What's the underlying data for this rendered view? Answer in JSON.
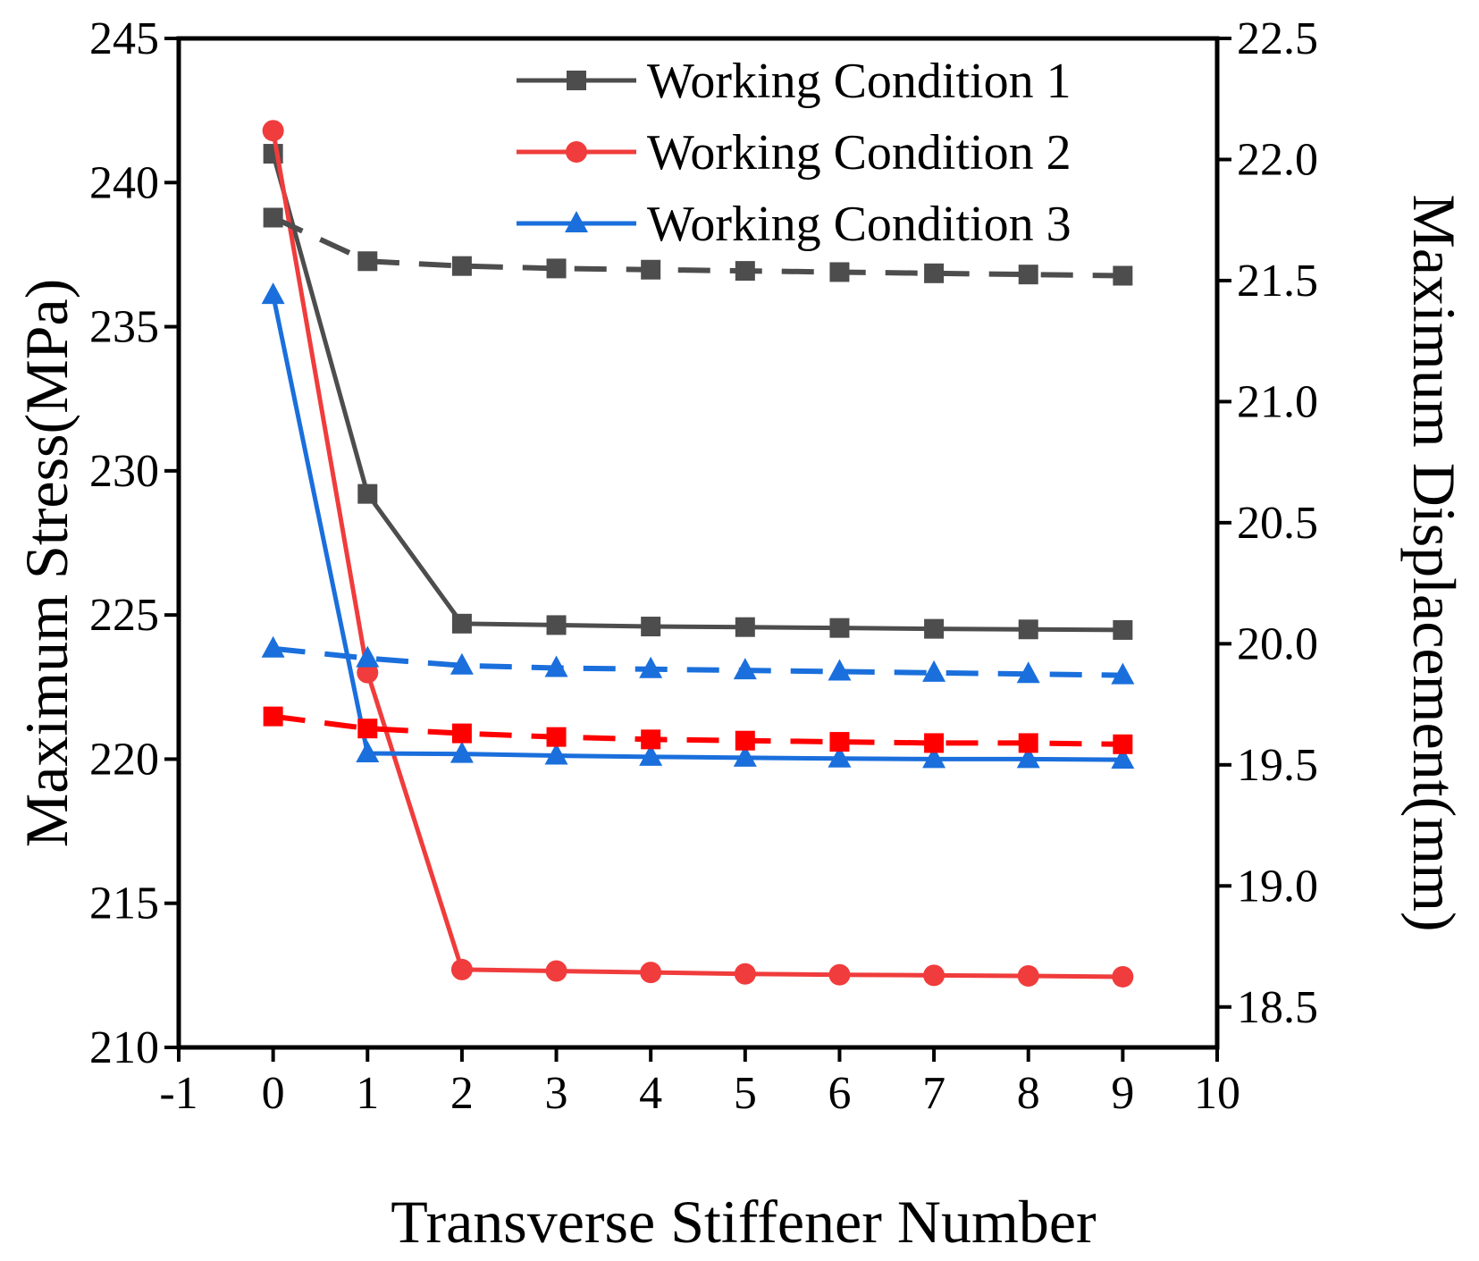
{
  "chart_data": {
    "type": "line",
    "title": "",
    "xlabel": "Transverse Stiffener Number",
    "ylabel": "Maximum Stress(MPa)",
    "y2label": "Maximum Displacement(mm)",
    "xlim": [
      -1,
      10
    ],
    "ylim": [
      210,
      245
    ],
    "y2lim": [
      18.333,
      22.5
    ],
    "xticks": [
      "-1",
      "0",
      "1",
      "2",
      "3",
      "4",
      "5",
      "6",
      "7",
      "8",
      "9",
      "10"
    ],
    "yticks": [
      "210",
      "215",
      "220",
      "225",
      "230",
      "235",
      "240",
      "245"
    ],
    "y2ticks": [
      "18.5",
      "19.0",
      "19.5",
      "20.0",
      "20.5",
      "21.0",
      "21.5",
      "22.0",
      "22.5"
    ],
    "x": [
      0,
      1,
      2,
      3,
      4,
      5,
      6,
      7,
      8,
      9
    ],
    "legend_position": "top-right",
    "series": [
      {
        "name": "Working Condition 1",
        "axis": "left",
        "style": "solid",
        "marker": "square",
        "color": "#4d4d4d",
        "values": [
          241.0,
          229.2,
          224.7,
          224.65,
          224.6,
          224.58,
          224.55,
          224.52,
          224.5,
          224.48
        ],
        "legend": true
      },
      {
        "name": "Working Condition 2",
        "axis": "left",
        "style": "solid",
        "marker": "circle",
        "color": "#f03c3c",
        "values": [
          241.8,
          223.0,
          212.7,
          212.65,
          212.6,
          212.55,
          212.52,
          212.5,
          212.48,
          212.45
        ],
        "legend": true
      },
      {
        "name": "Working Condition 3",
        "axis": "left",
        "style": "solid",
        "marker": "triangle",
        "color": "#1a6fdc",
        "values": [
          236.1,
          220.2,
          220.18,
          220.12,
          220.08,
          220.05,
          220.02,
          220.0,
          220.0,
          219.98
        ],
        "legend": true
      },
      {
        "name": "Working Condition 1 (displacement)",
        "axis": "right",
        "style": "dashed",
        "marker": "square",
        "color": "#4d4d4d",
        "values": [
          21.76,
          21.58,
          21.56,
          21.55,
          21.545,
          21.54,
          21.535,
          21.53,
          21.525,
          21.52
        ],
        "legend": false
      },
      {
        "name": "Working Condition 2 (displacement)",
        "axis": "right",
        "style": "dashed",
        "marker": "square",
        "color": "#ff0000",
        "values": [
          19.7,
          19.65,
          19.63,
          19.615,
          19.605,
          19.6,
          19.595,
          19.59,
          19.59,
          19.585
        ],
        "legend": false
      },
      {
        "name": "Working Condition 3 (displacement)",
        "axis": "right",
        "style": "dashed",
        "marker": "triangle",
        "color": "#1a6fdc",
        "values": [
          19.98,
          19.94,
          19.91,
          19.9,
          19.895,
          19.89,
          19.885,
          19.88,
          19.875,
          19.87
        ],
        "legend": false
      }
    ]
  }
}
